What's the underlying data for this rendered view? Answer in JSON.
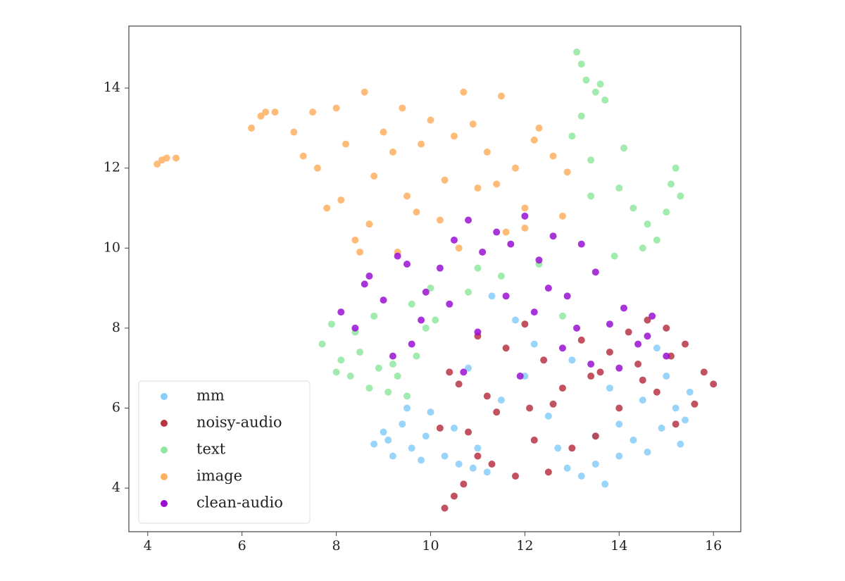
{
  "chart_data": {
    "type": "scatter",
    "xlim": [
      3.6,
      16.58
    ],
    "ylim": [
      2.91,
      15.55
    ],
    "xticks": [
      4,
      6,
      8,
      10,
      12,
      14,
      16
    ],
    "yticks": [
      4,
      6,
      8,
      10,
      12,
      14
    ],
    "grid": false,
    "legend": "lower left",
    "series": [
      {
        "name": "mm",
        "color": "#87cefa",
        "x": [
          8.8,
          9.0,
          9.2,
          9.4,
          9.6,
          9.8,
          10.0,
          9.1,
          9.5,
          9.9,
          10.3,
          10.6,
          10.9,
          11.2,
          10.5,
          11.0,
          11.5,
          12.0,
          12.5,
          12.9,
          13.2,
          13.5,
          13.7,
          14.0,
          14.3,
          14.6,
          14.9,
          15.2,
          15.4,
          15.5,
          15.0,
          14.5,
          14.0,
          13.5,
          13.0,
          12.2,
          11.8,
          11.3,
          10.8,
          14.8,
          15.3,
          13.8,
          12.7
        ],
        "values": [
          5.1,
          5.4,
          4.8,
          5.6,
          5.0,
          4.7,
          5.9,
          5.2,
          6.0,
          5.3,
          4.8,
          4.6,
          4.5,
          4.4,
          5.5,
          5.0,
          6.2,
          6.8,
          5.8,
          4.5,
          4.3,
          4.6,
          4.1,
          4.8,
          5.2,
          4.9,
          5.5,
          6.0,
          5.7,
          6.4,
          6.8,
          6.2,
          5.6,
          5.3,
          7.2,
          7.6,
          8.2,
          8.8,
          7.0,
          7.5,
          5.1,
          6.5,
          5.0
        ]
      },
      {
        "name": "noisy-audio",
        "color": "#b83444",
        "x": [
          10.3,
          10.5,
          10.7,
          10.2,
          10.6,
          11.0,
          11.4,
          11.8,
          12.2,
          12.6,
          13.0,
          13.4,
          13.8,
          14.2,
          14.6,
          15.0,
          15.4,
          15.8,
          16.0,
          15.6,
          15.2,
          14.8,
          14.4,
          14.0,
          13.6,
          13.2,
          12.8,
          12.4,
          12.0,
          11.6,
          11.2,
          10.8,
          10.4,
          11.3,
          12.5,
          13.5,
          14.5,
          15.1,
          12.1,
          11.0
        ],
        "values": [
          3.5,
          3.8,
          4.1,
          5.5,
          6.6,
          4.8,
          5.9,
          4.3,
          5.2,
          6.1,
          5.0,
          6.8,
          7.4,
          7.9,
          8.2,
          8.0,
          7.6,
          6.9,
          6.6,
          6.1,
          5.6,
          6.4,
          7.1,
          6.0,
          6.9,
          7.7,
          6.5,
          7.2,
          8.1,
          7.5,
          6.3,
          5.4,
          6.9,
          4.6,
          4.4,
          5.3,
          6.7,
          7.3,
          6.0,
          7.8
        ]
      },
      {
        "name": "text",
        "color": "#90e8a0",
        "x": [
          7.7,
          7.9,
          8.1,
          8.3,
          8.5,
          8.7,
          8.9,
          9.1,
          9.3,
          9.5,
          9.7,
          9.9,
          10.1,
          8.0,
          8.4,
          8.8,
          9.2,
          9.6,
          10.0,
          13.1,
          13.2,
          13.3,
          13.5,
          13.6,
          13.7,
          13.2,
          13.0,
          13.4,
          14.0,
          14.1,
          14.3,
          14.6,
          14.8,
          15.0,
          15.1,
          15.2,
          15.3,
          14.5,
          13.9,
          13.4,
          10.8,
          11.5,
          12.3,
          12.8,
          11.0
        ],
        "values": [
          7.6,
          8.1,
          7.2,
          6.8,
          7.4,
          6.5,
          7.0,
          6.4,
          6.8,
          6.3,
          7.3,
          8.0,
          8.2,
          6.9,
          7.9,
          8.3,
          7.1,
          8.6,
          9.0,
          14.9,
          14.6,
          14.2,
          13.9,
          14.1,
          13.7,
          13.3,
          12.8,
          12.2,
          11.5,
          12.5,
          11.0,
          10.6,
          10.2,
          10.9,
          11.6,
          12.0,
          11.3,
          10.0,
          9.8,
          11.3,
          8.9,
          9.3,
          9.6,
          8.3,
          9.5
        ]
      },
      {
        "name": "image",
        "color": "#ffb060",
        "x": [
          4.2,
          4.3,
          4.4,
          4.6,
          6.2,
          6.4,
          6.5,
          6.7,
          7.1,
          7.3,
          7.5,
          7.8,
          8.0,
          8.2,
          8.4,
          8.6,
          8.8,
          9.0,
          9.3,
          9.5,
          9.8,
          10.0,
          10.2,
          10.5,
          10.7,
          11.0,
          11.2,
          11.5,
          11.8,
          12.0,
          12.3,
          12.6,
          12.9,
          7.6,
          8.1,
          8.7,
          9.2,
          9.7,
          10.3,
          10.9,
          11.6,
          12.2,
          12.8,
          8.5,
          9.4,
          10.6,
          11.4,
          12.0
        ],
        "values": [
          12.1,
          12.2,
          12.25,
          12.25,
          13.0,
          13.3,
          13.4,
          13.4,
          12.9,
          12.3,
          13.4,
          11.0,
          13.5,
          12.6,
          10.2,
          13.9,
          11.8,
          12.9,
          9.9,
          11.3,
          12.6,
          13.2,
          10.7,
          12.8,
          13.9,
          11.5,
          12.4,
          13.8,
          12.0,
          11.0,
          13.0,
          12.3,
          11.9,
          12.0,
          11.2,
          10.6,
          12.4,
          10.9,
          11.7,
          13.1,
          10.4,
          12.7,
          10.8,
          9.9,
          13.5,
          10.0,
          11.6,
          10.5
        ]
      },
      {
        "name": "clean-audio",
        "color": "#9a10d2",
        "x": [
          8.1,
          8.4,
          8.7,
          9.0,
          9.3,
          9.6,
          9.9,
          10.2,
          10.5,
          10.8,
          11.1,
          11.4,
          11.7,
          12.0,
          12.3,
          12.6,
          12.9,
          13.2,
          13.5,
          13.8,
          14.1,
          14.4,
          14.7,
          15.0,
          8.6,
          9.2,
          9.8,
          10.4,
          11.0,
          11.6,
          12.2,
          12.8,
          13.4,
          14.0,
          14.6,
          10.7,
          11.9,
          12.5,
          13.1,
          9.5
        ],
        "values": [
          8.4,
          8.0,
          9.3,
          8.7,
          9.8,
          7.6,
          8.9,
          9.5,
          10.2,
          10.7,
          9.9,
          10.4,
          10.1,
          10.8,
          9.7,
          10.3,
          8.8,
          10.1,
          9.4,
          8.1,
          8.5,
          7.6,
          8.3,
          7.3,
          9.1,
          7.3,
          8.2,
          8.6,
          7.9,
          8.8,
          8.4,
          7.5,
          7.1,
          7.0,
          7.8,
          6.9,
          6.8,
          9.0,
          8.0,
          9.6
        ]
      }
    ]
  }
}
